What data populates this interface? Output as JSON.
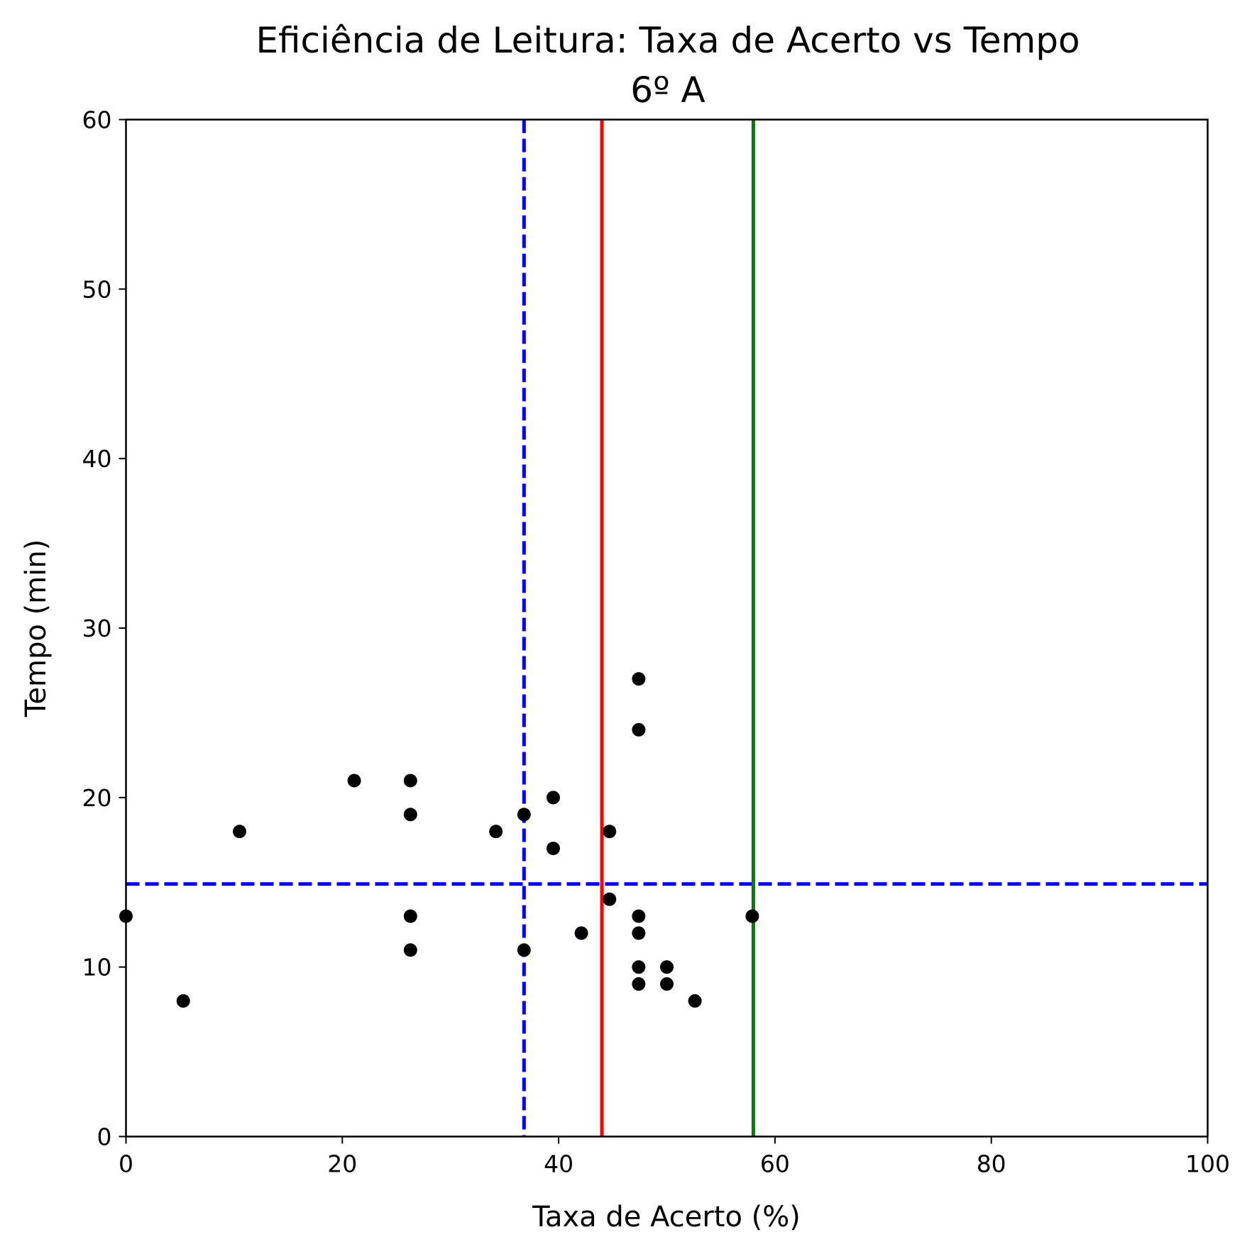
{
  "chart_data": {
    "type": "scatter",
    "title": "Eficiência de Leitura: Taxa de Acerto vs Tempo",
    "subtitle": "6º A",
    "xlabel": "Taxa de Acerto (%)",
    "ylabel": "Tempo (min)",
    "xlim": [
      0,
      100
    ],
    "ylim": [
      0,
      60
    ],
    "xticks": [
      0,
      20,
      40,
      60,
      80,
      100
    ],
    "yticks": [
      0,
      10,
      20,
      30,
      40,
      50,
      60
    ],
    "xtick_labels": [
      "0",
      "20",
      "40",
      "60",
      "80",
      "100"
    ],
    "ytick_labels": [
      "0",
      "10",
      "20",
      "30",
      "40",
      "50",
      "60"
    ],
    "grid": false,
    "legend": "none",
    "point_color": "#000000",
    "points": [
      {
        "x": 0.0,
        "y": 13
      },
      {
        "x": 5.3,
        "y": 8
      },
      {
        "x": 10.5,
        "y": 18
      },
      {
        "x": 21.1,
        "y": 21
      },
      {
        "x": 26.3,
        "y": 21
      },
      {
        "x": 26.3,
        "y": 19
      },
      {
        "x": 26.3,
        "y": 13
      },
      {
        "x": 26.3,
        "y": 11
      },
      {
        "x": 34.2,
        "y": 18
      },
      {
        "x": 36.8,
        "y": 19
      },
      {
        "x": 36.8,
        "y": 11
      },
      {
        "x": 39.5,
        "y": 20
      },
      {
        "x": 39.5,
        "y": 17
      },
      {
        "x": 42.1,
        "y": 12
      },
      {
        "x": 44.7,
        "y": 18
      },
      {
        "x": 44.7,
        "y": 14
      },
      {
        "x": 47.4,
        "y": 27
      },
      {
        "x": 47.4,
        "y": 24
      },
      {
        "x": 47.4,
        "y": 13
      },
      {
        "x": 47.4,
        "y": 12
      },
      {
        "x": 47.4,
        "y": 10
      },
      {
        "x": 47.4,
        "y": 9
      },
      {
        "x": 50.0,
        "y": 10
      },
      {
        "x": 50.0,
        "y": 9
      },
      {
        "x": 52.6,
        "y": 8
      },
      {
        "x": 57.9,
        "y": 13
      }
    ],
    "reference_lines": [
      {
        "orientation": "vertical",
        "value": 36.8,
        "color": "#0000ff",
        "style": "dashed"
      },
      {
        "orientation": "horizontal",
        "value": 14.9,
        "color": "#0000ff",
        "style": "dashed"
      },
      {
        "orientation": "vertical",
        "value": 44.0,
        "color": "#ff0000",
        "style": "solid"
      },
      {
        "orientation": "vertical",
        "value": 58.0,
        "color": "#008000",
        "style": "solid"
      }
    ]
  }
}
